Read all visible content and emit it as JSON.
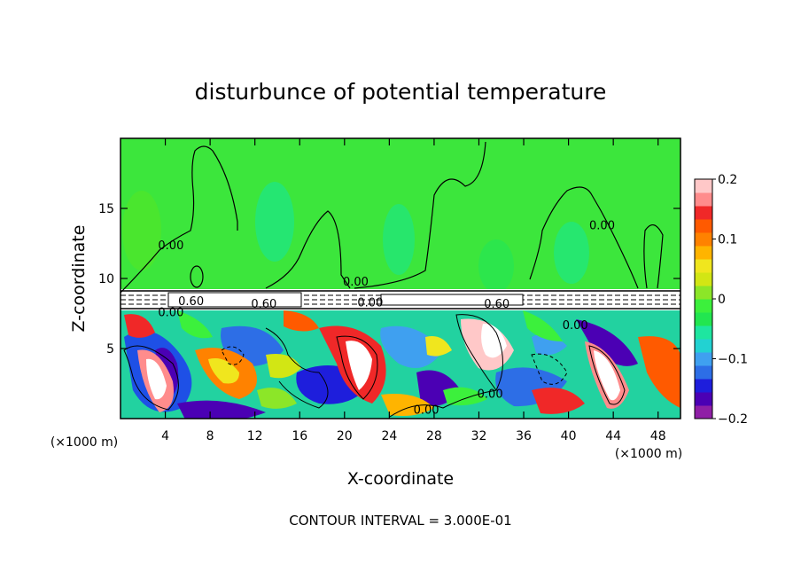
{
  "chart_data": {
    "type": "heatmap",
    "title": "disturbunce of potential temperature",
    "xlabel": "X-coordinate",
    "ylabel": "Z-coordinate",
    "x_unit_label": "(×1000 m)",
    "x_unit_label_right": "(×1000 m)",
    "xlim": [
      0,
      50
    ],
    "ylim": [
      0,
      20
    ],
    "x_ticks": [
      4,
      8,
      12,
      16,
      20,
      24,
      28,
      32,
      36,
      40,
      44,
      48
    ],
    "x_tick_labels": [
      "4",
      "8",
      "12",
      "16",
      "20",
      "24",
      "28",
      "32",
      "36",
      "40",
      "44",
      "48"
    ],
    "y_ticks": [
      5,
      10,
      15
    ],
    "y_tick_labels": [
      "5",
      "10",
      "15"
    ],
    "colorbar": {
      "range": [
        -0.2,
        0.2
      ],
      "ticks": [
        0.2,
        0.1,
        0,
        -0.1,
        -0.2
      ],
      "tick_labels": [
        "0.2",
        "0.1",
        "0",
        "−0.1",
        "−0.2"
      ],
      "colors": [
        "#8f1fa6",
        "#4b00b4",
        "#1e1edc",
        "#2d6ee6",
        "#3fa0f0",
        "#22d2d2",
        "#1ee6a0",
        "#22e650",
        "#3cf03c",
        "#8ce628",
        "#d2e614",
        "#f0e61e",
        "#ffb400",
        "#ff8200",
        "#ff5a00",
        "#f02828",
        "#ff8c8c",
        "#ffc8c8"
      ]
    },
    "contour_labels": [
      {
        "text": "0.00",
        "x": 4.5,
        "y": 12.1
      },
      {
        "text": "0.00",
        "x": 43.0,
        "y": 13.5
      },
      {
        "text": "0.00",
        "x": 21.0,
        "y": 9.5
      },
      {
        "text": "0.60",
        "x": 12.8,
        "y": 7.9
      },
      {
        "text": "0.60",
        "x": 33.6,
        "y": 7.9
      },
      {
        "text": "0.00",
        "x": 22.3,
        "y": 8.0
      },
      {
        "text": "0.60",
        "x": 6.3,
        "y": 8.1
      },
      {
        "text": "0.00",
        "x": 4.5,
        "y": 7.3
      },
      {
        "text": "0.00",
        "x": 40.6,
        "y": 6.4
      },
      {
        "text": "0.00",
        "x": 33.0,
        "y": 1.5
      },
      {
        "text": "0.00",
        "x": 27.3,
        "y": 0.35
      }
    ],
    "annotation": "CONTOUR INTERVAL = 3.000E-01",
    "grid": false,
    "legend": "colorbar-right"
  }
}
